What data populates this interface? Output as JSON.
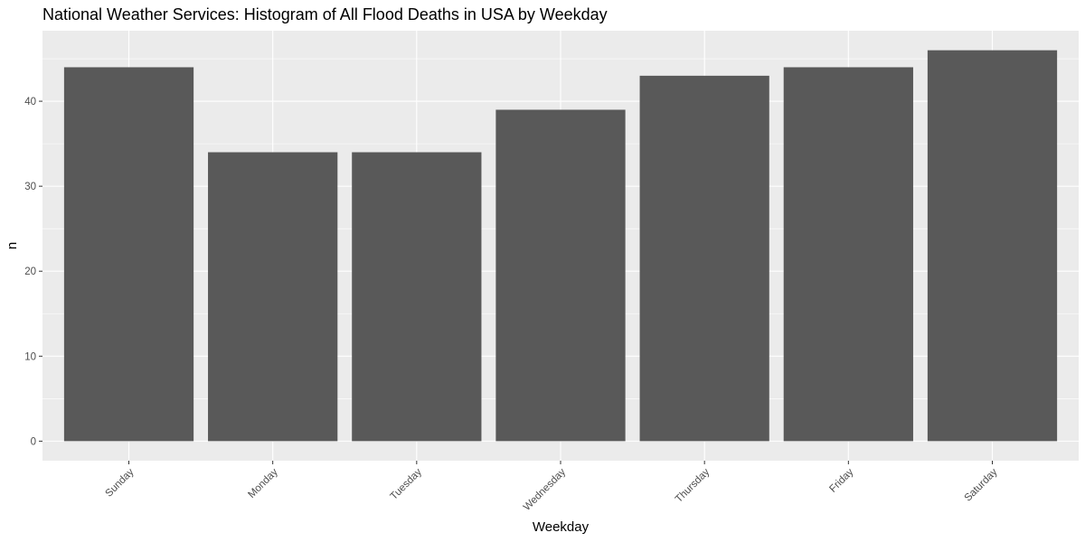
{
  "chart_data": {
    "type": "bar",
    "title": "National Weather Services: Histogram of All Flood Deaths in USA by Weekday",
    "xlabel": "Weekday",
    "ylabel": "n",
    "categories": [
      "Sunday",
      "Monday",
      "Tuesday",
      "Wednesday",
      "Thursday",
      "Friday",
      "Saturday"
    ],
    "values": [
      44,
      34,
      34,
      39,
      43,
      44,
      46
    ],
    "ylim": [
      -2.3,
      48.3
    ],
    "yticks": [
      0,
      10,
      20,
      30,
      40
    ],
    "ytick_labels": [
      "0",
      "10",
      "20",
      "30",
      "40"
    ],
    "grid": true,
    "colors": {
      "panel": "#ebebeb",
      "grid": "#ffffff",
      "bar": "#595959",
      "tick_text": "#4d4d4d",
      "tick_mark": "#333333"
    }
  }
}
